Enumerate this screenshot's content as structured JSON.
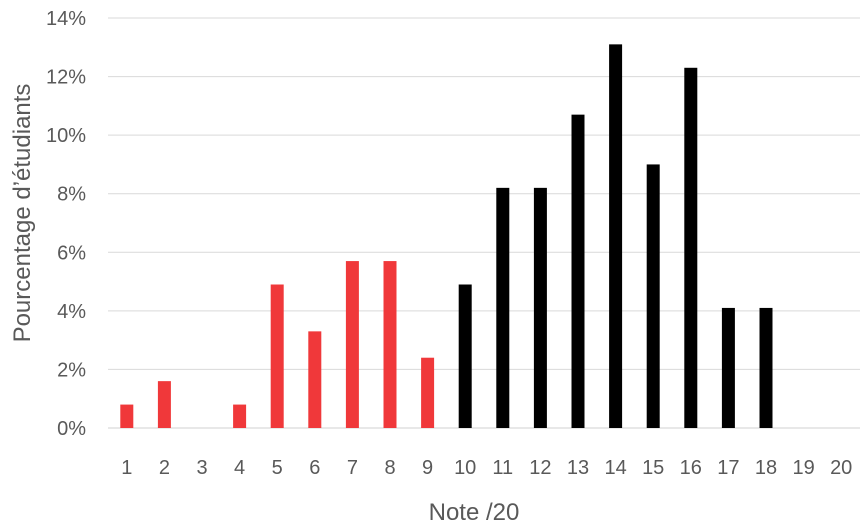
{
  "chart_data": {
    "type": "bar",
    "title": "",
    "xlabel": "Note /20",
    "ylabel": "Pourcentage d’étudiants",
    "categories": [
      "1",
      "2",
      "3",
      "4",
      "5",
      "6",
      "7",
      "8",
      "9",
      "10",
      "11",
      "12",
      "13",
      "14",
      "15",
      "16",
      "17",
      "18",
      "19",
      "20"
    ],
    "values": [
      0.8,
      1.6,
      0,
      0.8,
      4.9,
      3.3,
      5.7,
      5.7,
      2.4,
      4.9,
      8.2,
      8.2,
      10.7,
      13.1,
      9.0,
      12.3,
      4.1,
      4.1,
      0,
      0
    ],
    "ylim": [
      0,
      14
    ],
    "yticks": [
      0,
      2,
      4,
      6,
      8,
      10,
      12,
      14
    ],
    "ytick_labels": [
      "0%",
      "2%",
      "4%",
      "6%",
      "8%",
      "10%",
      "12%",
      "14%"
    ],
    "grid": true,
    "colors": {
      "fail": "#f0383a",
      "pass": "#000000"
    },
    "color_rule": {
      "threshold_category": "10",
      "below": "fail",
      "at_or_above": "pass"
    }
  }
}
